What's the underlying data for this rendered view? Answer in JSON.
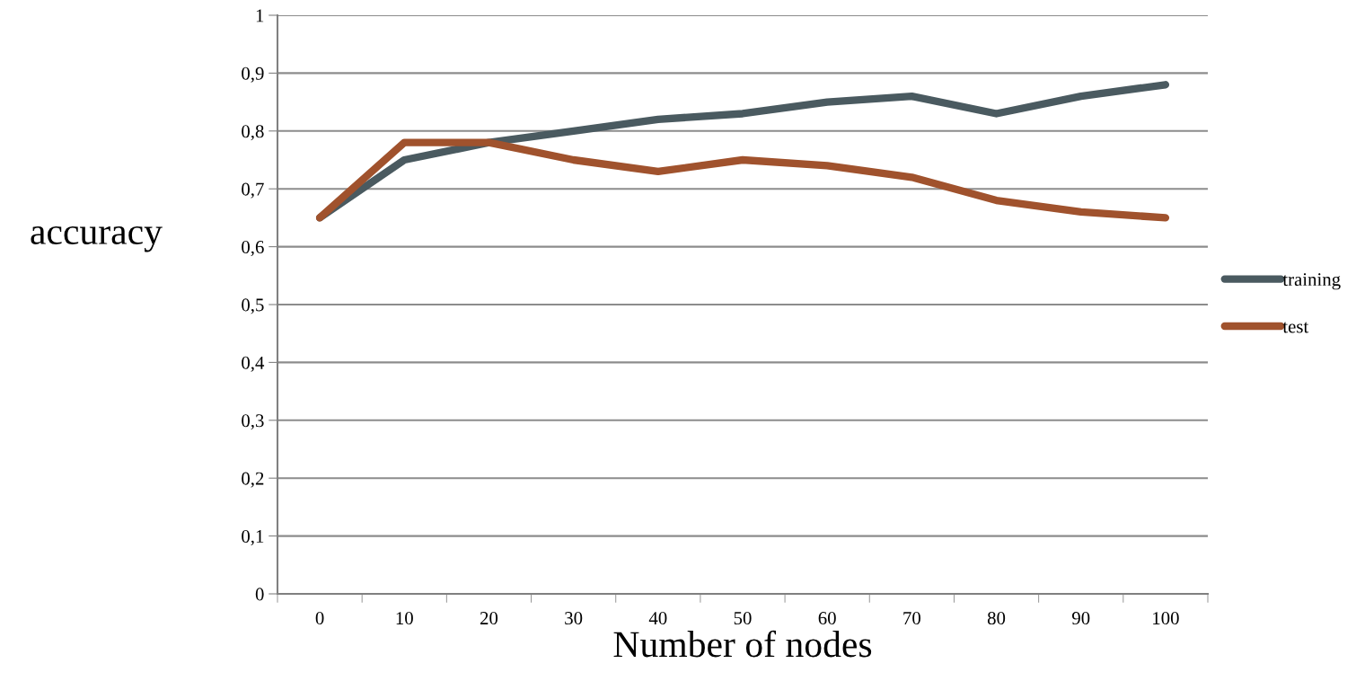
{
  "chart_data": {
    "type": "line",
    "xlabel": "Number of nodes",
    "ylabel": "accuracy",
    "categories": [
      "0",
      "10",
      "20",
      "30",
      "40",
      "50",
      "60",
      "70",
      "80",
      "90",
      "100"
    ],
    "series": [
      {
        "name": "training",
        "color": "#4a5a60",
        "values": [
          0.65,
          0.75,
          0.78,
          0.8,
          0.82,
          0.83,
          0.85,
          0.86,
          0.83,
          0.86,
          0.88
        ]
      },
      {
        "name": "test",
        "color": "#a0522d",
        "values": [
          0.65,
          0.78,
          0.78,
          0.75,
          0.73,
          0.75,
          0.74,
          0.72,
          0.68,
          0.66,
          0.65
        ]
      }
    ],
    "ylim": [
      0,
      1
    ],
    "yticks": [
      0,
      {
        "value": 0.1,
        "label": "0,1"
      },
      {
        "value": 0.2,
        "label": "0,2"
      },
      {
        "value": 0.3,
        "label": "0,3"
      },
      {
        "value": 0.4,
        "label": "0,4"
      },
      {
        "value": 0.5,
        "label": "0,5"
      },
      {
        "value": 0.6,
        "label": "0,6"
      },
      {
        "value": 0.7,
        "label": "0,7"
      },
      {
        "value": 0.8,
        "label": "0,8"
      },
      {
        "value": 0.9,
        "label": "0,9"
      },
      1
    ],
    "grid": "y",
    "legend": "right",
    "marker": "none",
    "line_style": "solid"
  }
}
